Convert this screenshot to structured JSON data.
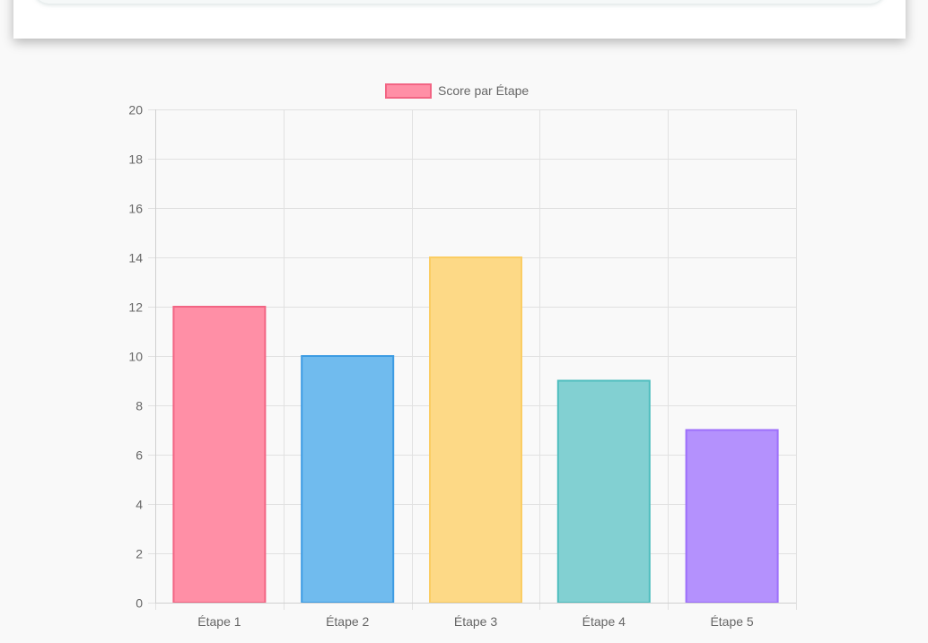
{
  "chart_data": {
    "type": "bar",
    "categories": [
      "Étape 1",
      "Étape 2",
      "Étape 3",
      "Étape 4",
      "Étape 5"
    ],
    "series": [
      {
        "name": "Score par Étape",
        "values": [
          12,
          10,
          14,
          9,
          7
        ]
      }
    ],
    "bar_fill_colors": [
      "#ff8fa6",
      "#70bbee",
      "#fdd986",
      "#82d0d2",
      "#b491fd"
    ],
    "bar_border_colors": [
      "#f26584",
      "#3d9ce3",
      "#fbcd63",
      "#4fbebf",
      "#9d6ffb"
    ],
    "ylim": [
      0,
      20
    ],
    "y_ticks": [
      0,
      2,
      4,
      6,
      8,
      10,
      12,
      14,
      16,
      18,
      20
    ],
    "grid": true,
    "legend_position": "top-center"
  }
}
